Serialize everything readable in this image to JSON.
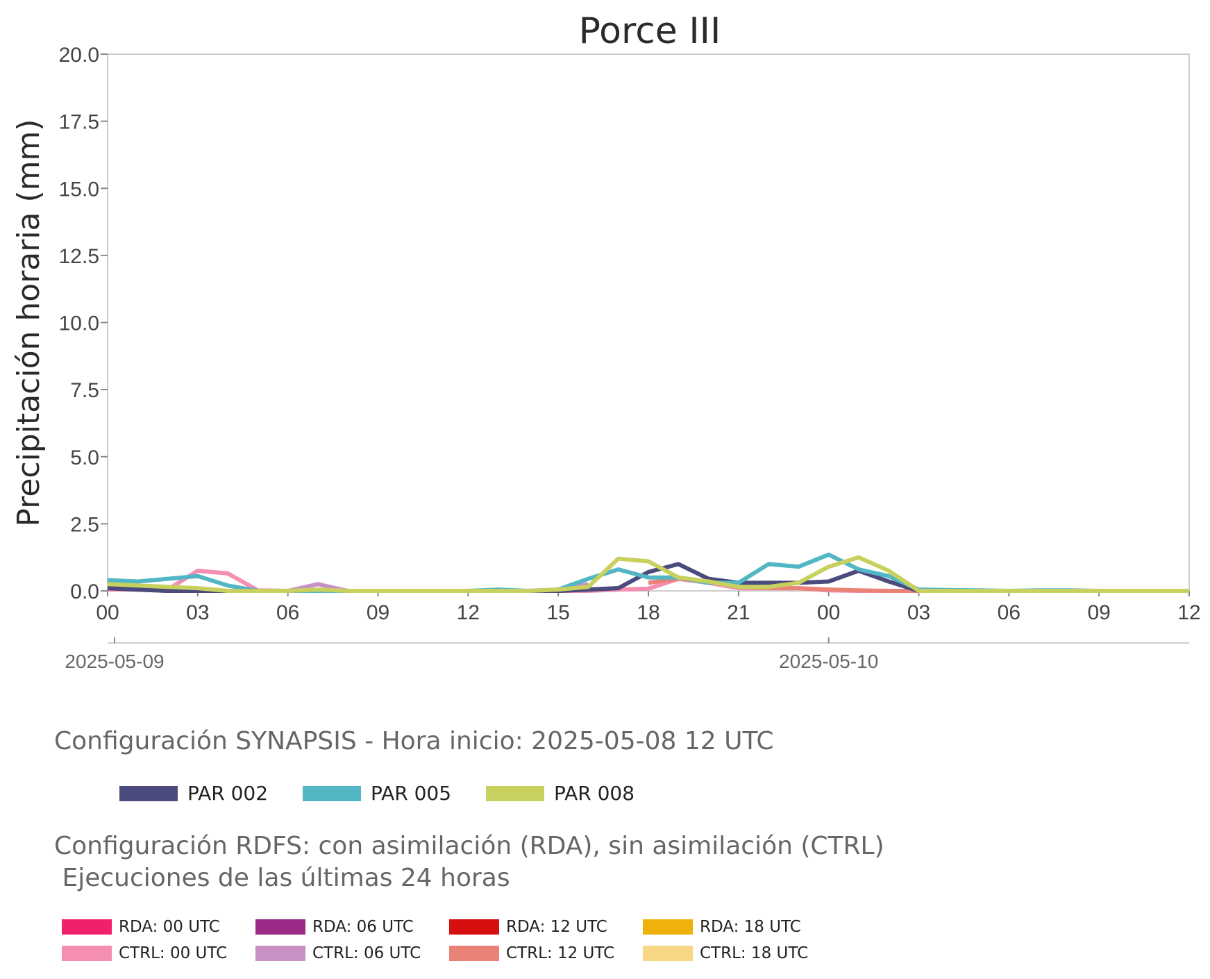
{
  "chart_data": {
    "type": "line",
    "title": "Porce III",
    "ylabel": "Precipitación horaria (mm)",
    "xlabel": "",
    "ylim": [
      0,
      20
    ],
    "yticks": [
      "0.0",
      "2.5",
      "5.0",
      "7.5",
      "10.0",
      "12.5",
      "15.0",
      "17.5",
      "20.0"
    ],
    "xlim": [
      "2025-05-09 00:00",
      "2025-05-10 12:00"
    ],
    "xticks": [
      "00",
      "03",
      "06",
      "09",
      "12",
      "15",
      "18",
      "21",
      "00",
      "03",
      "06",
      "09",
      "12"
    ],
    "date_labels": [
      "2025-05-09",
      "2025-05-10"
    ],
    "grid": false,
    "x_start_hour": 0,
    "x_end_hour": 36,
    "series": [
      {
        "name": "CTRL: 00 UTC",
        "color": "#f48fb1",
        "x_hours": [
          0,
          1,
          2,
          3,
          4,
          5,
          6,
          7,
          8,
          9,
          10,
          11,
          12,
          13,
          14,
          15,
          16,
          17,
          18,
          19,
          20,
          21,
          22,
          23,
          24,
          25,
          26,
          27,
          28
        ],
        "values": [
          0.05,
          0.05,
          0.05,
          0.75,
          0.65,
          0.02,
          0.0,
          0.0,
          0.0,
          0.0,
          0.0,
          0.0,
          0.0,
          0.0,
          0.0,
          0.0,
          0.0,
          0.05,
          0.08,
          0.45,
          0.3,
          0.1,
          0.1,
          0.1,
          0.02,
          0.0,
          0.0,
          0.0,
          0.0
        ]
      },
      {
        "name": "RDA: 06 UTC",
        "color": "#9b2a86",
        "x_hours": [
          0,
          1,
          2,
          3,
          4,
          5,
          6,
          7,
          8,
          9,
          10,
          11,
          12,
          13,
          14,
          15,
          16,
          17
        ],
        "values": [
          0.1,
          0.05,
          0.0,
          0.0,
          0.0,
          0.0,
          0.0,
          0.0,
          0.0,
          0.0,
          0.0,
          0.0,
          0.0,
          0.0,
          0.0,
          0.0,
          0.05,
          0.1
        ]
      },
      {
        "name": "CTRL: 06 UTC",
        "color": "#c990c4",
        "x_hours": [
          5,
          6,
          7,
          8,
          9,
          10,
          11,
          12,
          13,
          14,
          15,
          16
        ],
        "values": [
          0.0,
          0.0,
          0.25,
          0.0,
          0.0,
          0.0,
          0.0,
          0.0,
          0.0,
          0.0,
          0.05,
          0.25
        ]
      },
      {
        "name": "CTRL: 12 UTC",
        "color": "#eb8277",
        "x_hours": [
          18,
          19,
          20,
          21,
          22,
          23,
          24,
          25,
          26,
          27,
          28
        ],
        "values": [
          0.3,
          0.45,
          0.35,
          0.15,
          0.1,
          0.1,
          0.05,
          0.02,
          0.0,
          0.0,
          0.0
        ]
      },
      {
        "name": "PAR 002",
        "color": "#4a4a7c",
        "x_hours": [
          0,
          1,
          2,
          3,
          4,
          5,
          6,
          7,
          8,
          9,
          10,
          11,
          12,
          13,
          14,
          15,
          16,
          17,
          18,
          19,
          20,
          21,
          22,
          23,
          24,
          25,
          26,
          27,
          28,
          29,
          30,
          31,
          32,
          33,
          34,
          35,
          36
        ],
        "values": [
          0.1,
          0.05,
          0.0,
          0.0,
          0.0,
          0.0,
          0.0,
          0.0,
          0.0,
          0.0,
          0.0,
          0.0,
          0.0,
          0.0,
          0.0,
          0.0,
          0.05,
          0.1,
          0.7,
          1.0,
          0.45,
          0.3,
          0.3,
          0.3,
          0.35,
          0.75,
          0.35,
          0.0,
          0.0,
          0.0,
          0.0,
          0.0,
          0.0,
          0.0,
          0.0,
          0.0,
          0.0
        ]
      },
      {
        "name": "PAR 005",
        "color": "#52b6c4",
        "x_hours": [
          0,
          1,
          2,
          3,
          4,
          5,
          6,
          7,
          8,
          9,
          10,
          11,
          12,
          13,
          14,
          15,
          16,
          17,
          18,
          19,
          20,
          21,
          22,
          23,
          24,
          25,
          26,
          27,
          28,
          29,
          30,
          31,
          32,
          33,
          34,
          35,
          36
        ],
        "values": [
          0.4,
          0.35,
          0.45,
          0.55,
          0.2,
          0.0,
          0.0,
          0.0,
          0.0,
          0.0,
          0.0,
          0.0,
          0.0,
          0.05,
          0.0,
          0.05,
          0.45,
          0.8,
          0.5,
          0.5,
          0.3,
          0.3,
          1.0,
          0.9,
          1.35,
          0.8,
          0.55,
          0.05,
          0.03,
          0.02,
          0.0,
          0.02,
          0.02,
          0.0,
          0.0,
          0.0,
          0.0
        ]
      },
      {
        "name": "PAR 008",
        "color": "#c8d05e",
        "x_hours": [
          0,
          1,
          2,
          3,
          4,
          5,
          6,
          7,
          8,
          9,
          10,
          11,
          12,
          13,
          14,
          15,
          16,
          17,
          18,
          19,
          20,
          21,
          22,
          23,
          24,
          25,
          26,
          27,
          28,
          29,
          30,
          31,
          32,
          33,
          34,
          35,
          36
        ],
        "values": [
          0.25,
          0.2,
          0.15,
          0.1,
          0.0,
          0.0,
          0.0,
          0.05,
          0.0,
          0.0,
          0.0,
          0.0,
          0.0,
          0.0,
          0.0,
          0.05,
          0.15,
          1.2,
          1.1,
          0.5,
          0.35,
          0.15,
          0.15,
          0.3,
          0.9,
          1.25,
          0.75,
          0.0,
          0.0,
          0.0,
          0.0,
          0.0,
          0.0,
          0.0,
          0.0,
          0.0,
          0.0
        ]
      }
    ]
  },
  "legend_synapsis": {
    "title": "Configuración SYNAPSIS - Hora inicio: 2025-05-08 12 UTC",
    "items": [
      {
        "label": "PAR 002",
        "color": "#4a4a7c"
      },
      {
        "label": "PAR 005",
        "color": "#52b6c4"
      },
      {
        "label": "PAR 008",
        "color": "#c8d05e"
      }
    ]
  },
  "legend_rdfs": {
    "title": "Configuración RDFS: con asimilación (RDA), sin asimilación (CTRL)\n Ejecuciones de las últimas 24 horas",
    "items": [
      {
        "label": "RDA: 00 UTC",
        "color": "#f0206c"
      },
      {
        "label": "RDA: 06 UTC",
        "color": "#9b2a86"
      },
      {
        "label": "RDA: 12 UTC",
        "color": "#d80f0f"
      },
      {
        "label": "RDA: 18 UTC",
        "color": "#f0b20a"
      },
      {
        "label": "CTRL: 00 UTC",
        "color": "#f48fb1"
      },
      {
        "label": "CTRL: 06 UTC",
        "color": "#c990c4"
      },
      {
        "label": "CTRL: 12 UTC",
        "color": "#eb8277"
      },
      {
        "label": "CTRL: 18 UTC",
        "color": "#f7d783"
      }
    ]
  }
}
